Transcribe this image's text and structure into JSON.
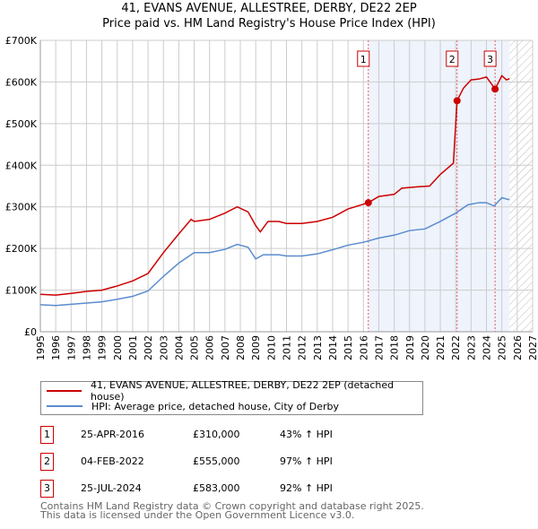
{
  "title": "41, EVANS AVENUE, ALLESTREE, DERBY, DE22 2EP",
  "subtitle": "Price paid vs. HM Land Registry's House Price Index (HPI)",
  "chart_data": {
    "type": "line",
    "ylim": [
      0,
      700000
    ],
    "xlim": [
      1995,
      2027
    ],
    "yticks": [
      {
        "v": 0,
        "label": "£0"
      },
      {
        "v": 100000,
        "label": "£100K"
      },
      {
        "v": 200000,
        "label": "£200K"
      },
      {
        "v": 300000,
        "label": "£300K"
      },
      {
        "v": 400000,
        "label": "£400K"
      },
      {
        "v": 500000,
        "label": "£500K"
      },
      {
        "v": 600000,
        "label": "£600K"
      },
      {
        "v": 700000,
        "label": "£700K"
      }
    ],
    "xticks": [
      "1995",
      "1996",
      "1997",
      "1998",
      "1999",
      "2000",
      "2001",
      "2002",
      "2003",
      "2004",
      "2005",
      "2006",
      "2007",
      "2008",
      "2009",
      "2010",
      "2011",
      "2012",
      "2013",
      "2014",
      "2015",
      "2016",
      "2017",
      "2018",
      "2019",
      "2020",
      "2021",
      "2022",
      "2023",
      "2024",
      "2025",
      "2026",
      "2027"
    ],
    "grid": true,
    "shaded_range": [
      2016.32,
      2025.5
    ],
    "forecast_hatch_from": 2025.5,
    "series": [
      {
        "name": "41, EVANS AVENUE, ALLESTREE, DERBY, DE22 2EP (detached house)",
        "color": "#cc0000",
        "x": [
          1995,
          1996,
          1997,
          1998,
          1999,
          2000,
          2001,
          2002,
          2003,
          2004,
          2004.8,
          2005,
          2006,
          2007,
          2007.8,
          2008.5,
          2009,
          2009.3,
          2009.8,
          2010.5,
          2011,
          2012,
          2013,
          2014,
          2015,
          2016.32,
          2017,
          2018,
          2018.5,
          2019.5,
          2020.3,
          2021,
          2021.85,
          2022.09,
          2022.5,
          2023,
          2023.5,
          2024,
          2024.56,
          2025,
          2025.3,
          2025.5
        ],
        "y": [
          90000,
          88000,
          92000,
          97000,
          100000,
          110000,
          122000,
          140000,
          190000,
          235000,
          270000,
          265000,
          270000,
          285000,
          300000,
          288000,
          255000,
          240000,
          265000,
          265000,
          260000,
          260000,
          265000,
          275000,
          295000,
          310000,
          325000,
          330000,
          345000,
          348000,
          350000,
          378000,
          405000,
          555000,
          585000,
          605000,
          607000,
          612000,
          583000,
          615000,
          605000,
          608000
        ]
      },
      {
        "name": "HPI: Average price, detached house, City of Derby",
        "color": "#5b8ccf",
        "x": [
          1995,
          1996,
          1997,
          1998,
          1999,
          2000,
          2001,
          2002,
          2003,
          2004,
          2005,
          2006,
          2007,
          2007.8,
          2008.5,
          2009,
          2009.5,
          2010.5,
          2011,
          2012,
          2013,
          2014,
          2015,
          2016,
          2017,
          2018,
          2019,
          2020,
          2021,
          2022,
          2022.8,
          2023.5,
          2024,
          2024.5,
          2025,
          2025.5
        ],
        "y": [
          65000,
          63000,
          66000,
          69000,
          72000,
          78000,
          85000,
          98000,
          133000,
          165000,
          190000,
          190000,
          198000,
          210000,
          203000,
          175000,
          185000,
          185000,
          182000,
          182000,
          187000,
          197000,
          208000,
          215000,
          225000,
          232000,
          243000,
          247000,
          265000,
          285000,
          305000,
          310000,
          310000,
          302000,
          322000,
          317000
        ]
      }
    ],
    "sales": [
      {
        "id": "1",
        "x": 2016.32,
        "y": 310000,
        "date": "25-APR-2016",
        "price": "£310,000",
        "hpi": "43% ↑ HPI"
      },
      {
        "id": "2",
        "x": 2022.09,
        "y": 555000,
        "date": "04-FEB-2022",
        "price": "£555,000",
        "hpi": "97% ↑ HPI"
      },
      {
        "id": "3",
        "x": 2024.56,
        "y": 583000,
        "date": "25-JUL-2024",
        "price": "£583,000",
        "hpi": "92% ↑ HPI"
      }
    ]
  },
  "footer": [
    "Contains HM Land Registry data © Crown copyright and database right 2025.",
    "This data is licensed under the Open Government Licence v3.0."
  ]
}
